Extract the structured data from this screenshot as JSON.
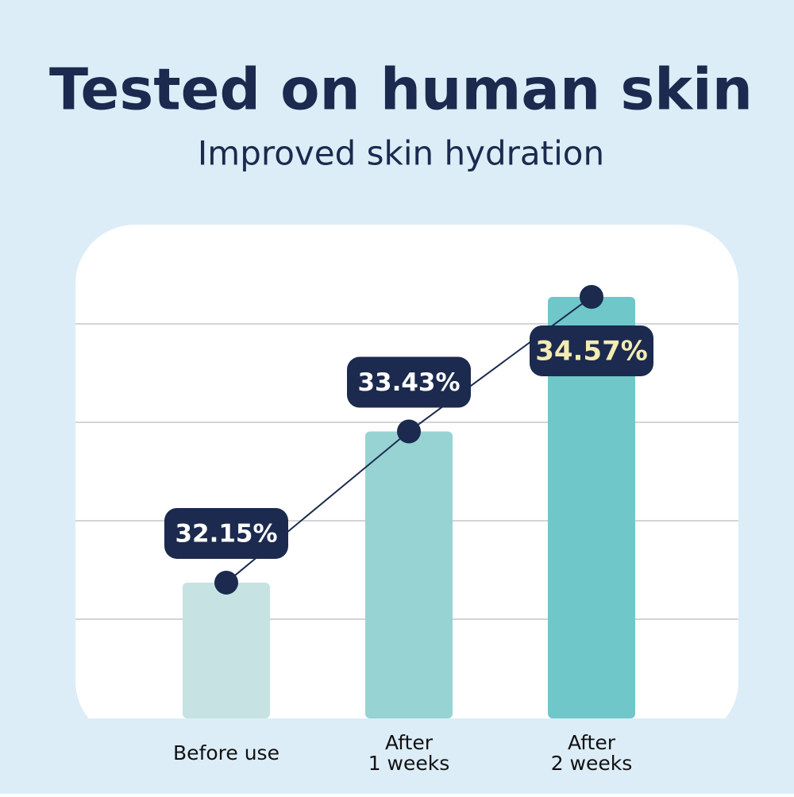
{
  "chart_data": {
    "type": "bar",
    "title": "Tested on human skin",
    "subtitle": "Improved skin hydration",
    "categories": [
      "Before use",
      "After\n1 weeks",
      "After\n2 weeks"
    ],
    "values": [
      32.15,
      33.43,
      34.57
    ],
    "value_labels": [
      "32.15%",
      "33.43%",
      "34.57%"
    ],
    "colors": [
      "#c6e2e2",
      "#97d3d3",
      "#6fc7ca"
    ],
    "ylim": [
      31,
      35
    ],
    "grid": true
  }
}
